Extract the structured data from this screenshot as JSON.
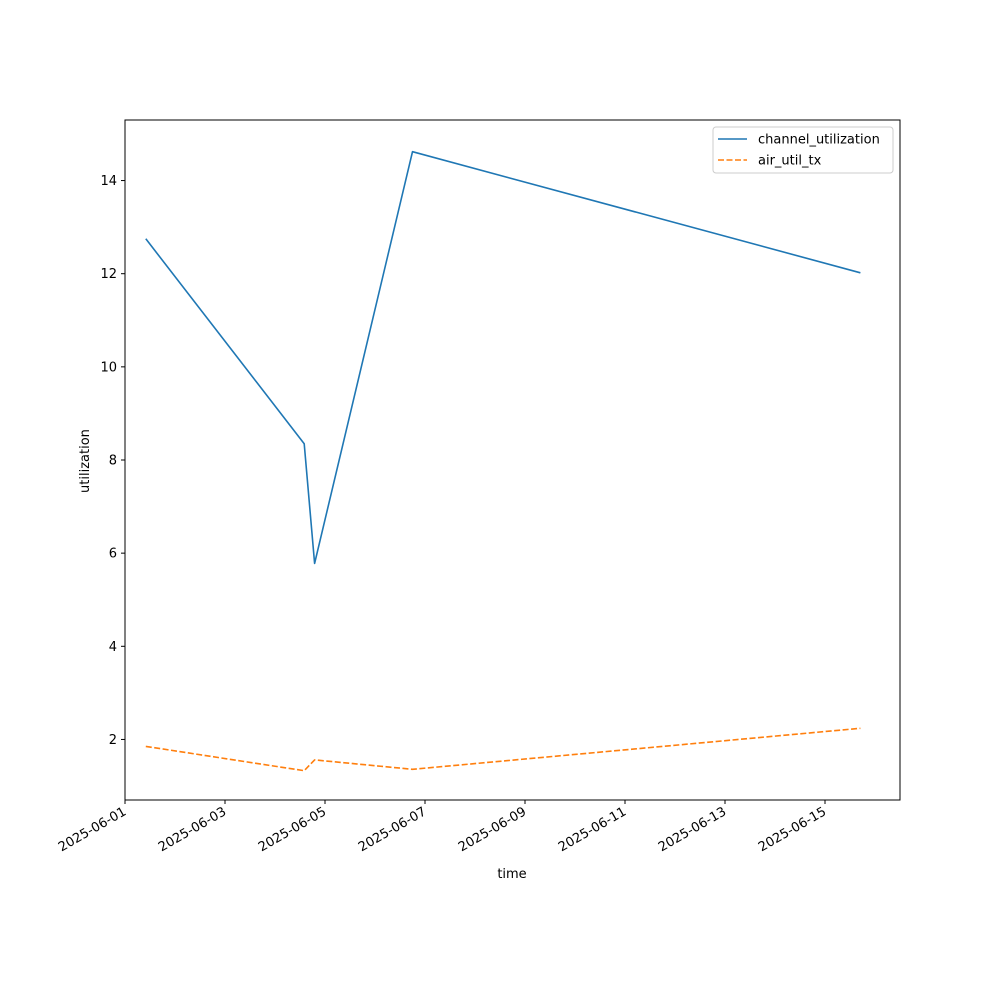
{
  "chart_data": {
    "type": "line",
    "title": "",
    "xlabel": "time",
    "ylabel": "utilization",
    "x_type": "datetime",
    "x_ticks": [
      "2025-06-01",
      "2025-06-03",
      "2025-06-05",
      "2025-06-07",
      "2025-06-09",
      "2025-06-11",
      "2025-06-13",
      "2025-06-15"
    ],
    "y_ticks": [
      2,
      4,
      6,
      8,
      10,
      12,
      14
    ],
    "xlim": [
      "2025-06-01T00:00",
      "2025-06-16T12:00"
    ],
    "ylim": [
      0.7,
      15.3
    ],
    "grid": false,
    "legend_position": "top-right",
    "series": [
      {
        "name": "channel_utilization",
        "color": "#1f77b4",
        "dash": "solid",
        "points": [
          {
            "x": "2025-06-01T10:00",
            "y": 12.75
          },
          {
            "x": "2025-06-04T14:00",
            "y": 8.35
          },
          {
            "x": "2025-06-04T19:00",
            "y": 5.78
          },
          {
            "x": "2025-06-06T18:00",
            "y": 14.62
          },
          {
            "x": "2025-06-15T17:00",
            "y": 12.02
          }
        ]
      },
      {
        "name": "air_util_tx",
        "color": "#ff7f0e",
        "dash": "dashed",
        "points": [
          {
            "x": "2025-06-01T10:00",
            "y": 1.85
          },
          {
            "x": "2025-06-04T14:00",
            "y": 1.33
          },
          {
            "x": "2025-06-04T19:00",
            "y": 1.56
          },
          {
            "x": "2025-06-06T18:00",
            "y": 1.36
          },
          {
            "x": "2025-06-15T17:00",
            "y": 2.24
          }
        ]
      }
    ]
  }
}
